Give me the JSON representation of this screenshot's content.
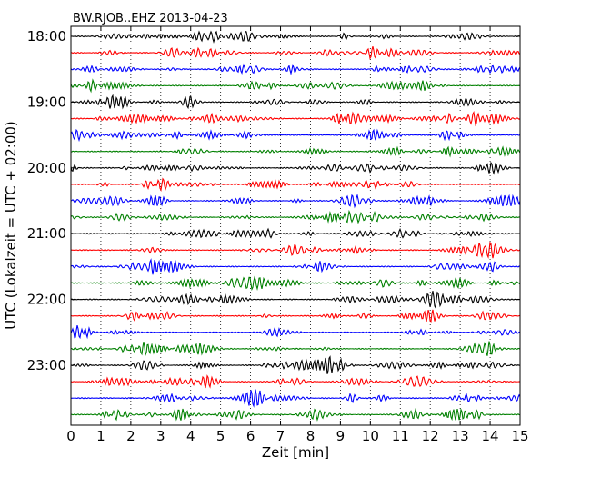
{
  "chart_data": {
    "type": "line",
    "title": "BW.RJOB..EHZ 2013-04-23",
    "xlabel": "Zeit  [min]",
    "ylabel": "UTC (Lokalzeit = UTC + 02:00)",
    "xlim": [
      0,
      15
    ],
    "x_ticks": [
      "0",
      "1",
      "2",
      "3",
      "4",
      "5",
      "6",
      "7",
      "8",
      "9",
      "10",
      "11",
      "12",
      "13",
      "14",
      "15"
    ],
    "hour_labels": [
      "18:00",
      "19:00",
      "20:00",
      "21:00",
      "22:00",
      "23:00"
    ],
    "traces_per_hour": 4,
    "trace_count": 24,
    "colors": [
      "#000000",
      "#ff0000",
      "#0000ff",
      "#008000"
    ],
    "grid": "vertical dotted"
  }
}
